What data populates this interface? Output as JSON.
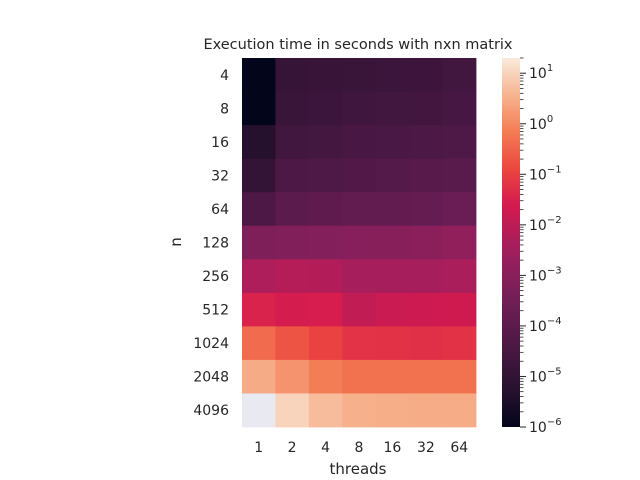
{
  "chart_data": {
    "type": "heatmap",
    "title": "Execution time in seconds with nxn matrix",
    "xlabel": "threads",
    "ylabel": "n",
    "x_categories": [
      "1",
      "2",
      "4",
      "8",
      "16",
      "32",
      "64"
    ],
    "y_categories": [
      "4",
      "8",
      "16",
      "32",
      "64",
      "128",
      "256",
      "512",
      "1024",
      "2048",
      "4096"
    ],
    "values": [
      [
        1e-06,
        1.2e-05,
        1.4e-05,
        1.6e-05,
        1.7e-05,
        1.9e-05,
        2.3e-05
      ],
      [
        1e-06,
        1.6e-05,
        1.8e-05,
        2.1e-05,
        2.3e-05,
        2.6e-05,
        3.3e-05
      ],
      [
        5e-06,
        2.4e-05,
        2.8e-05,
        3.4e-05,
        3.7e-05,
        4.3e-05,
        5e-05
      ],
      [
        1.1e-05,
        4.6e-05,
        5.1e-05,
        5.8e-05,
        6.6e-05,
        7.6e-05,
        8.9e-05
      ],
      [
        4.4e-05,
        0.0001,
        0.00012,
        0.00014,
        0.00015,
        0.00017,
        0.00022
      ],
      [
        0.0006,
        0.00068,
        0.00078,
        0.0009,
        0.00095,
        0.00115,
        0.0015
      ],
      [
        0.0052,
        0.007,
        0.0064,
        0.0042,
        0.004,
        0.0042,
        0.0048
      ],
      [
        0.033,
        0.026,
        0.027,
        0.012,
        0.016,
        0.018,
        0.02
      ],
      [
        0.42,
        0.2,
        0.11,
        0.065,
        0.06,
        0.056,
        0.06
      ],
      [
        2.8,
        1.4,
        0.72,
        0.5,
        0.5,
        0.5,
        0.5
      ],
      [
        60.0,
        10.0,
        4.8,
        3.3,
        3.1,
        3.0,
        3.0
      ]
    ],
    "scale": "log",
    "colormap": "rocket",
    "colorbar": {
      "min": 1e-06,
      "max": 20,
      "major_ticks": [
        {
          "value": 1e-06,
          "label": "10",
          "exp": "−6"
        },
        {
          "value": 1e-05,
          "label": "10",
          "exp": "−5"
        },
        {
          "value": 0.0001,
          "label": "10",
          "exp": "−4"
        },
        {
          "value": 0.001,
          "label": "10",
          "exp": "−3"
        },
        {
          "value": 0.01,
          "label": "10",
          "exp": "−2"
        },
        {
          "value": 0.1,
          "label": "10",
          "exp": "−1"
        },
        {
          "value": 1,
          "label": "10",
          "exp": "0"
        },
        {
          "value": 10,
          "label": "10",
          "exp": "1"
        }
      ]
    },
    "over_color": "#e9e9f2",
    "grid": false
  }
}
